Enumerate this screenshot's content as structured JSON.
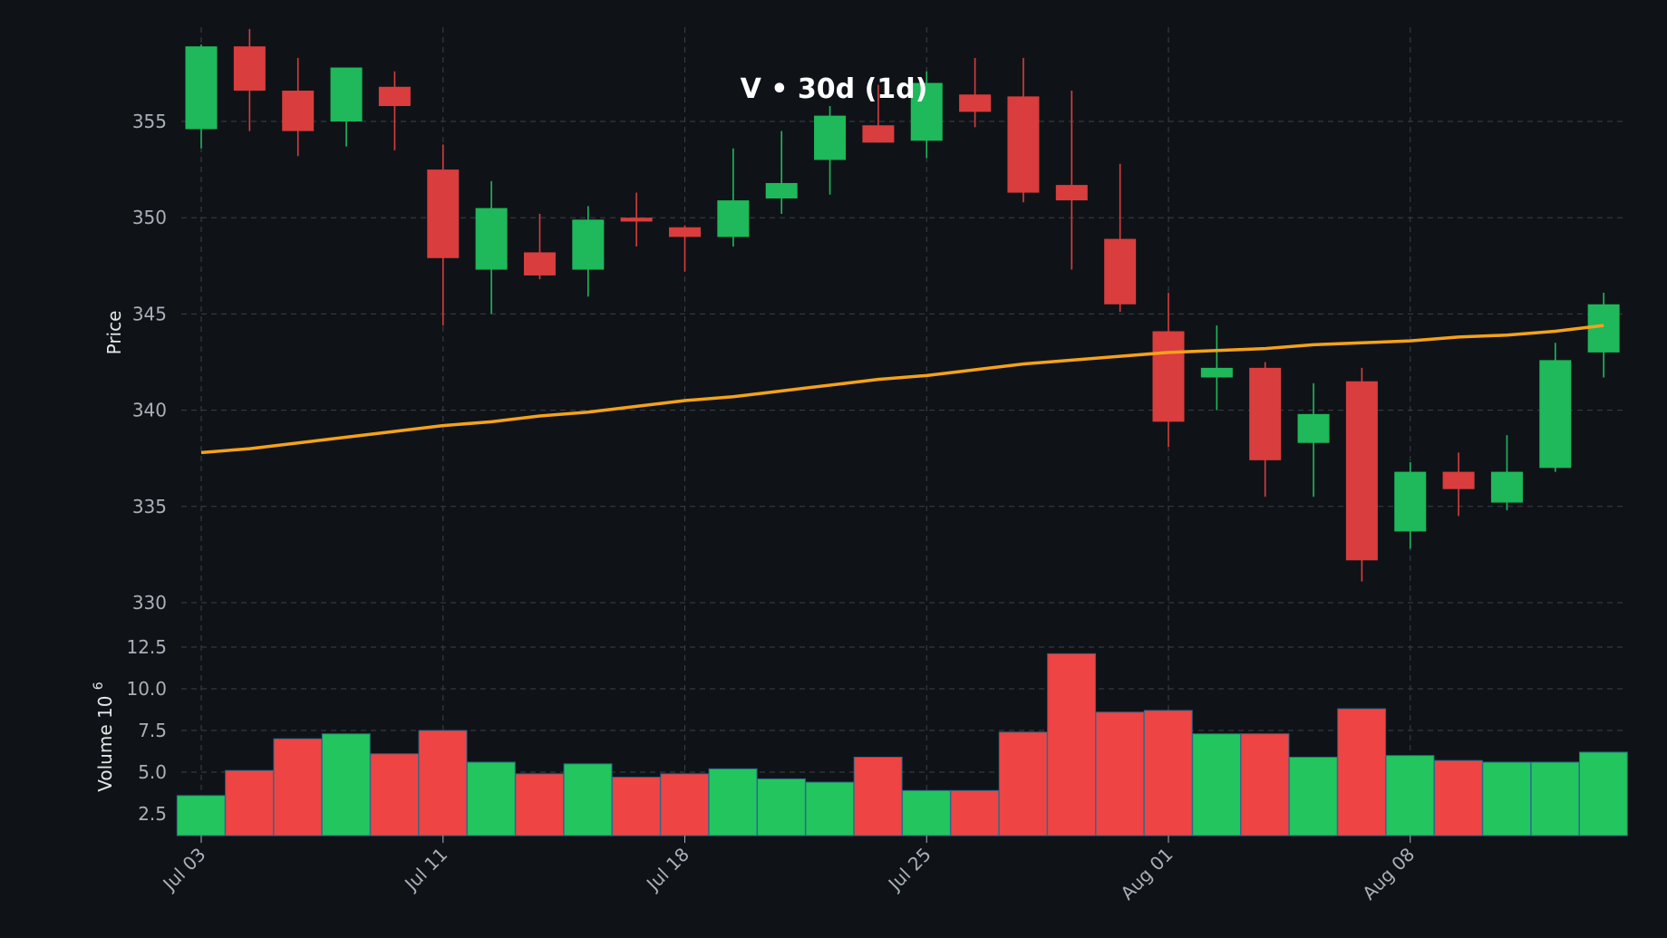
{
  "chart_data": {
    "type": "candlestick",
    "title": "V • 30d (1d)",
    "price_ylabel": "Price",
    "volume_ylabel": "Volume",
    "volume_unit_base": "10",
    "volume_unit_exp": "6",
    "price_ylim": [
      328.5,
      360
    ],
    "price_yticks": [
      330,
      335,
      340,
      345,
      350,
      355
    ],
    "volume_ylim": [
      1.2,
      13.5
    ],
    "volume_yticks": [
      2.5,
      5.0,
      7.5,
      10.0,
      12.5
    ],
    "volume_ytick_labels": [
      "2.5",
      "5.0",
      "7.5",
      "10.0",
      "12.5"
    ],
    "x_ticks": [
      {
        "index": 0,
        "label": "Jul 03"
      },
      {
        "index": 5,
        "label": "Jul 11"
      },
      {
        "index": 10,
        "label": "Jul 18"
      },
      {
        "index": 15,
        "label": "Jul 25"
      },
      {
        "index": 20,
        "label": "Aug 01"
      },
      {
        "index": 25,
        "label": "Aug 08"
      }
    ],
    "grid": true,
    "colors": {
      "up": "#1fb85a",
      "down": "#d93d3d",
      "volume_up": "#22c55e",
      "volume_down": "#ef4444",
      "moving_average": "#f5a21a",
      "background": "#0f1318"
    },
    "candles": [
      {
        "open": 354.6,
        "high": 359.0,
        "low": 353.6,
        "close": 358.9
      },
      {
        "open": 358.9,
        "high": 359.8,
        "low": 354.5,
        "close": 356.6
      },
      {
        "open": 356.6,
        "high": 358.3,
        "low": 353.2,
        "close": 354.5
      },
      {
        "open": 355.0,
        "high": 357.8,
        "low": 353.7,
        "close": 357.8
      },
      {
        "open": 356.8,
        "high": 357.6,
        "low": 353.5,
        "close": 355.8
      },
      {
        "open": 352.5,
        "high": 353.8,
        "low": 344.4,
        "close": 347.9
      },
      {
        "open": 347.3,
        "high": 351.9,
        "low": 345.0,
        "close": 350.5
      },
      {
        "open": 348.2,
        "high": 350.2,
        "low": 346.8,
        "close": 347.0
      },
      {
        "open": 347.3,
        "high": 350.6,
        "low": 345.9,
        "close": 349.9
      },
      {
        "open": 350.0,
        "high": 351.3,
        "low": 348.5,
        "close": 349.8
      },
      {
        "open": 349.5,
        "high": 349.6,
        "low": 347.2,
        "close": 349.0
      },
      {
        "open": 349.0,
        "high": 353.6,
        "low": 348.5,
        "close": 350.9
      },
      {
        "open": 351.0,
        "high": 354.5,
        "low": 350.2,
        "close": 351.8
      },
      {
        "open": 353.0,
        "high": 355.8,
        "low": 351.2,
        "close": 355.3
      },
      {
        "open": 354.8,
        "high": 356.9,
        "low": 353.9,
        "close": 353.9
      },
      {
        "open": 354.0,
        "high": 357.6,
        "low": 353.1,
        "close": 357.0
      },
      {
        "open": 356.4,
        "high": 358.3,
        "low": 354.7,
        "close": 355.5
      },
      {
        "open": 356.3,
        "high": 358.3,
        "low": 350.8,
        "close": 351.3
      },
      {
        "open": 351.7,
        "high": 356.6,
        "low": 347.3,
        "close": 350.9
      },
      {
        "open": 348.9,
        "high": 352.8,
        "low": 345.1,
        "close": 345.5
      },
      {
        "open": 344.1,
        "high": 346.1,
        "low": 338.1,
        "close": 339.4
      },
      {
        "open": 341.7,
        "high": 344.4,
        "low": 340.0,
        "close": 342.2
      },
      {
        "open": 342.2,
        "high": 342.5,
        "low": 335.5,
        "close": 337.4
      },
      {
        "open": 338.3,
        "high": 341.4,
        "low": 335.5,
        "close": 339.8
      },
      {
        "open": 341.5,
        "high": 342.2,
        "low": 331.1,
        "close": 332.2
      },
      {
        "open": 333.7,
        "high": 337.3,
        "low": 332.8,
        "close": 336.8
      },
      {
        "open": 336.8,
        "high": 337.8,
        "low": 334.5,
        "close": 335.9
      },
      {
        "open": 335.2,
        "high": 338.7,
        "low": 334.8,
        "close": 336.8
      },
      {
        "open": 337.0,
        "high": 343.5,
        "low": 336.8,
        "close": 342.6
      },
      {
        "open": 343.0,
        "high": 346.1,
        "low": 341.7,
        "close": 345.5
      }
    ],
    "volumes": [
      3.6,
      5.1,
      7.0,
      7.3,
      6.1,
      7.5,
      5.6,
      4.9,
      5.5,
      4.7,
      4.9,
      5.2,
      4.6,
      4.4,
      5.9,
      3.9,
      3.9,
      7.4,
      12.1,
      8.6,
      8.7,
      7.3,
      7.3,
      5.9,
      8.8,
      6.0,
      5.7,
      5.6,
      5.6,
      6.2
    ],
    "volume_direction": [
      "up",
      "down",
      "down",
      "up",
      "down",
      "down",
      "up",
      "down",
      "up",
      "down",
      "down",
      "up",
      "up",
      "up",
      "down",
      "up",
      "down",
      "down",
      "down",
      "down",
      "down",
      "up",
      "down",
      "up",
      "down",
      "up",
      "down",
      "up",
      "up",
      "up"
    ],
    "moving_average": [
      337.8,
      338.0,
      338.3,
      338.6,
      338.9,
      339.2,
      339.4,
      339.7,
      339.9,
      340.2,
      340.5,
      340.7,
      341.0,
      341.3,
      341.6,
      341.8,
      342.1,
      342.4,
      342.6,
      342.8,
      343.0,
      343.1,
      343.2,
      343.4,
      343.5,
      343.6,
      343.8,
      343.9,
      344.1,
      344.4
    ]
  }
}
